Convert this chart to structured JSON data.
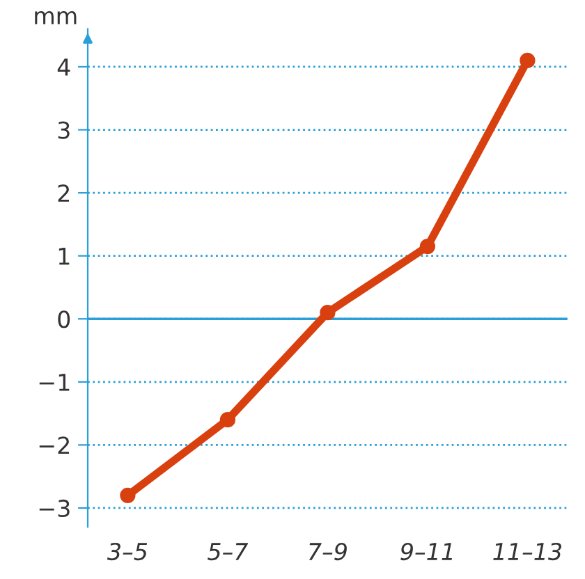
{
  "chart_data": {
    "type": "line",
    "ylabel": "mm",
    "categories": [
      "3–5",
      "5–7",
      "7–9",
      "9–11",
      "11–13"
    ],
    "series": [
      {
        "color": "#d9400f",
        "values": [
          -2.8,
          -1.6,
          0.1,
          1.15,
          4.1
        ]
      }
    ],
    "ylim": [
      -3.3,
      4.6
    ],
    "yticks": [
      -3,
      -2,
      -1,
      0,
      1,
      2,
      3,
      4
    ],
    "grid": "y",
    "marker": "circle",
    "line_style": "solid",
    "ref_lines": [
      {
        "axis": "y",
        "value": 0,
        "color": "#2a9fd8",
        "line_style": "solid"
      }
    ]
  }
}
